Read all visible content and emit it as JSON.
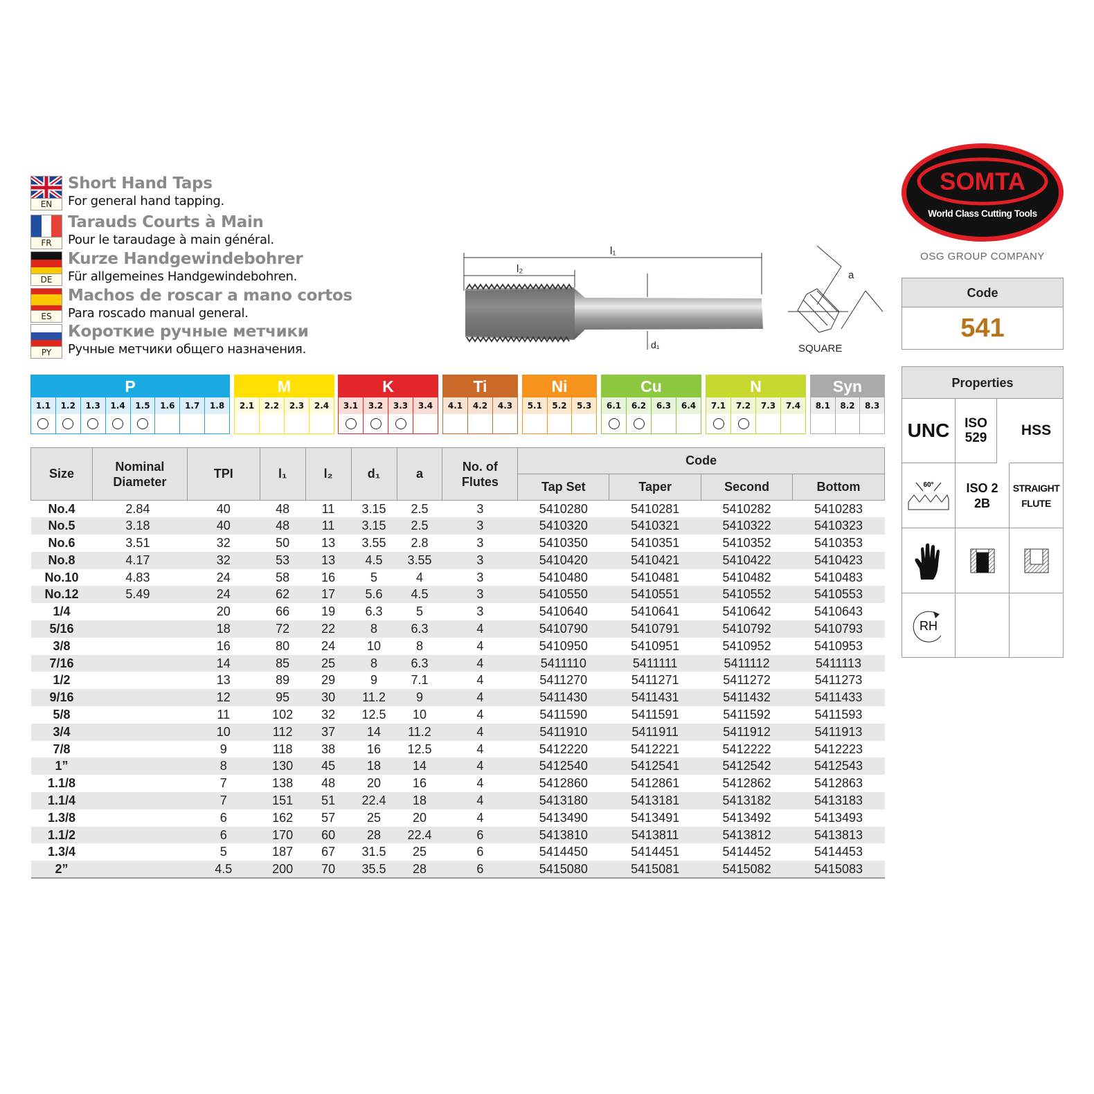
{
  "languages": [
    {
      "code": "EN",
      "title": "Short Hand Taps",
      "subtitle": "For general hand tapping.",
      "flag": "uk-flag"
    },
    {
      "code": "FR",
      "title": "Tarauds Courts à Main",
      "subtitle": "Pour le taraudage à main général.",
      "flag": "france-flag"
    },
    {
      "code": "DE",
      "title": "Kurze Handgewindebohrer",
      "subtitle": "Für allgemeines Handgewindebohren.",
      "flag": "germany-flag"
    },
    {
      "code": "ES",
      "title": "Machos de roscar a mano cortos",
      "subtitle": "Para roscado manual general.",
      "flag": "spain-flag"
    },
    {
      "code": "PY",
      "title": "Короткие ручные метчики",
      "subtitle": "Ручные метчики общего назначения.",
      "flag": "russia-flag"
    }
  ],
  "drawing": {
    "l1": "l₁",
    "l2": "l₂",
    "d1": "d₁",
    "a": "a",
    "square": "SQUARE"
  },
  "logo": {
    "brand": "SOMTA",
    "tagline": "World Class Cutting Tools",
    "group": "OSG GROUP COMPANY"
  },
  "code_box": {
    "label": "Code",
    "value": "541",
    "value_color": "#b8741a"
  },
  "properties": {
    "label": "Properties",
    "cells": [
      "UNC",
      "ISO 529",
      "HSS",
      "60°",
      "ISO 2 2B",
      "STRAIGHT FLUTE",
      "",
      "",
      "",
      "RH",
      "",
      ""
    ],
    "icons": [
      "unc",
      "iso-529",
      "hss",
      "60-degree-thread-icon",
      "tolerance",
      "straight-flute",
      "hand-tap-glove-icon",
      "through-hole-icon",
      "blind-hole-icon",
      "right-hand-rotation-icon",
      "",
      ""
    ]
  },
  "materials": [
    {
      "name": "P",
      "color": "#1ba9e1",
      "tint": "#dceef9",
      "cols": [
        "1.1",
        "1.2",
        "1.3",
        "1.4",
        "1.5",
        "1.6",
        "1.7",
        "1.8"
      ],
      "suitable": [
        "1.1",
        "1.2",
        "1.3",
        "1.4",
        "1.5"
      ]
    },
    {
      "name": "M",
      "color": "#ffe000",
      "tint": "#fffbe0",
      "cols": [
        "2.1",
        "2.2",
        "2.3",
        "2.4"
      ],
      "suitable": []
    },
    {
      "name": "K",
      "color": "#e3262b",
      "tint": "#fbdcd5",
      "cols": [
        "3.1",
        "3.2",
        "3.3",
        "3.4"
      ],
      "suitable": [
        "3.1",
        "3.2",
        "3.3"
      ]
    },
    {
      "name": "Ti",
      "color": "#c96a28",
      "tint": "#f8e3d3",
      "cols": [
        "4.1",
        "4.2",
        "4.3"
      ],
      "suitable": []
    },
    {
      "name": "Ni",
      "color": "#f7941d",
      "tint": "#fde9d0",
      "cols": [
        "5.1",
        "5.2",
        "5.3"
      ],
      "suitable": []
    },
    {
      "name": "Cu",
      "color": "#8dc63f",
      "tint": "#e8f3dc",
      "cols": [
        "6.1",
        "6.2",
        "6.3",
        "6.4"
      ],
      "suitable": [
        "6.1",
        "6.2"
      ]
    },
    {
      "name": "N",
      "color": "#c7d92f",
      "tint": "#f2f6d8",
      "cols": [
        "7.1",
        "7.2",
        "7.3",
        "7.4"
      ],
      "suitable": [
        "7.1",
        "7.2"
      ]
    },
    {
      "name": "Syn",
      "color": "#aaaaab",
      "tint": "#ededed",
      "cols": [
        "8.1",
        "8.2",
        "8.3"
      ],
      "suitable": []
    }
  ],
  "table": {
    "headers": {
      "size": "Size",
      "nominal": "Nominal Diameter",
      "tpi": "TPI",
      "l1": "l₁",
      "l2": "l₂",
      "d1": "d₁",
      "a": "a",
      "flutes": "No. of Flutes",
      "code": "Code",
      "tap_set": "Tap Set",
      "taper": "Taper",
      "second": "Second",
      "bottom": "Bottom"
    },
    "rows": [
      [
        "No.4",
        "2.84",
        "40",
        "48",
        "11",
        "3.15",
        "2.5",
        "3",
        "5410280",
        "5410281",
        "5410282",
        "5410283"
      ],
      [
        "No.5",
        "3.18",
        "40",
        "48",
        "11",
        "3.15",
        "2.5",
        "3",
        "5410320",
        "5410321",
        "5410322",
        "5410323"
      ],
      [
        "No.6",
        "3.51",
        "32",
        "50",
        "13",
        "3.55",
        "2.8",
        "3",
        "5410350",
        "5410351",
        "5410352",
        "5410353"
      ],
      [
        "No.8",
        "4.17",
        "32",
        "53",
        "13",
        "4.5",
        "3.55",
        "3",
        "5410420",
        "5410421",
        "5410422",
        "5410423"
      ],
      [
        "No.10",
        "4.83",
        "24",
        "58",
        "16",
        "5",
        "4",
        "3",
        "5410480",
        "5410481",
        "5410482",
        "5410483"
      ],
      [
        "No.12",
        "5.49",
        "24",
        "62",
        "17",
        "5.6",
        "4.5",
        "3",
        "5410550",
        "5410551",
        "5410552",
        "5410553"
      ],
      [
        "1/4",
        "",
        "20",
        "66",
        "19",
        "6.3",
        "5",
        "3",
        "5410640",
        "5410641",
        "5410642",
        "5410643"
      ],
      [
        "5/16",
        "",
        "18",
        "72",
        "22",
        "8",
        "6.3",
        "4",
        "5410790",
        "5410791",
        "5410792",
        "5410793"
      ],
      [
        "3/8",
        "",
        "16",
        "80",
        "24",
        "10",
        "8",
        "4",
        "5410950",
        "5410951",
        "5410952",
        "5410953"
      ],
      [
        "7/16",
        "",
        "14",
        "85",
        "25",
        "8",
        "6.3",
        "4",
        "5411110",
        "5411111",
        "5411112",
        "5411113"
      ],
      [
        "1/2",
        "",
        "13",
        "89",
        "29",
        "9",
        "7.1",
        "4",
        "5411270",
        "5411271",
        "5411272",
        "5411273"
      ],
      [
        "9/16",
        "",
        "12",
        "95",
        "30",
        "11.2",
        "9",
        "4",
        "5411430",
        "5411431",
        "5411432",
        "5411433"
      ],
      [
        "5/8",
        "",
        "11",
        "102",
        "32",
        "12.5",
        "10",
        "4",
        "5411590",
        "5411591",
        "5411592",
        "5411593"
      ],
      [
        "3/4",
        "",
        "10",
        "112",
        "37",
        "14",
        "11.2",
        "4",
        "5411910",
        "5411911",
        "5411912",
        "5411913"
      ],
      [
        "7/8",
        "",
        "9",
        "118",
        "38",
        "16",
        "12.5",
        "4",
        "5412220",
        "5412221",
        "5412222",
        "5412223"
      ],
      [
        "1”",
        "",
        "8",
        "130",
        "45",
        "18",
        "14",
        "4",
        "5412540",
        "5412541",
        "5412542",
        "5412543"
      ],
      [
        "1.1/8",
        "",
        "7",
        "138",
        "48",
        "20",
        "16",
        "4",
        "5412860",
        "5412861",
        "5412862",
        "5412863"
      ],
      [
        "1.1/4",
        "",
        "7",
        "151",
        "51",
        "22.4",
        "18",
        "4",
        "5413180",
        "5413181",
        "5413182",
        "5413183"
      ],
      [
        "1.3/8",
        "",
        "6",
        "162",
        "57",
        "25",
        "20",
        "4",
        "5413490",
        "5413491",
        "5413492",
        "5413493"
      ],
      [
        "1.1/2",
        "",
        "6",
        "170",
        "60",
        "28",
        "22.4",
        "6",
        "5413810",
        "5413811",
        "5413812",
        "5413813"
      ],
      [
        "1.3/4",
        "",
        "5",
        "187",
        "67",
        "31.5",
        "25",
        "6",
        "5414450",
        "5414451",
        "5414452",
        "5414453"
      ],
      [
        "2”",
        "",
        "4.5",
        "200",
        "70",
        "35.5",
        "28",
        "6",
        "5415080",
        "5415081",
        "5415082",
        "5415083"
      ]
    ]
  }
}
